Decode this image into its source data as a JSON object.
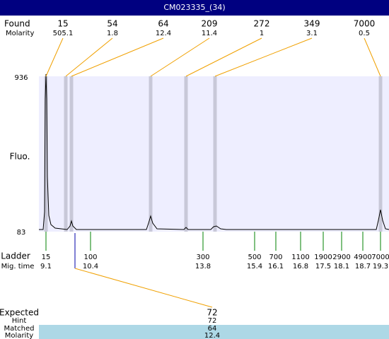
{
  "header": {
    "title": "CM023335_(34)"
  },
  "found": {
    "label": "Found",
    "molarity_label": "Molarity",
    "peaks": [
      {
        "size": 15,
        "molarity": 505.1
      },
      {
        "size": 54,
        "molarity": 1.8
      },
      {
        "size": 64,
        "molarity": 12.4
      },
      {
        "size": 209,
        "molarity": 11.4
      },
      {
        "size": 272,
        "molarity": 1
      },
      {
        "size": 349,
        "molarity": 3.1
      },
      {
        "size": 7000,
        "molarity": 0.5
      }
    ]
  },
  "axis": {
    "top": 936,
    "bottom": 83,
    "label": "Fluo."
  },
  "ladder": {
    "label": "Ladder",
    "mig_label": "Mig. time",
    "steps": [
      {
        "size": 15,
        "time": 9.1
      },
      {
        "size": 100,
        "time": 10.4
      },
      {
        "size": 300,
        "time": 13.8
      },
      {
        "size": 500,
        "time": 15.4
      },
      {
        "size": 700,
        "time": 16.1
      },
      {
        "size": 1100,
        "time": 16.8
      },
      {
        "size": 1900,
        "time": 17.5
      },
      {
        "size": 2900,
        "time": 18.1
      },
      {
        "size": 4900,
        "time": 18.7
      },
      {
        "size": 7000,
        "time": 19.3
      }
    ]
  },
  "expected": {
    "label": "Expected",
    "value": 72,
    "hint_label": "Hint",
    "hint": 72,
    "matched_label": "Matched",
    "matched": 64,
    "molarity_label": "Molarity",
    "molarity": 12.4
  }
}
